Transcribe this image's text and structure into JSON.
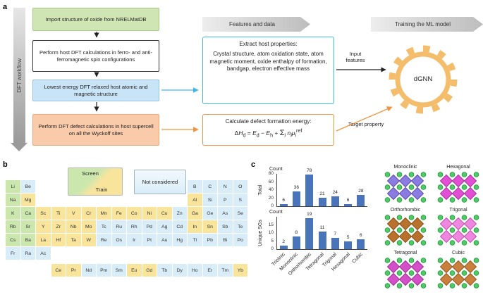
{
  "panel_labels": {
    "a": "a",
    "b": "b",
    "c": "c"
  },
  "colors": {
    "box_green": "#cfe5b3",
    "box_blue": "#c9e4f6",
    "box_orange": "#f9cbab",
    "border_blue": "#3fb7e9",
    "border_orange": "#f0923f",
    "gear_orange": "#f3bd6b",
    "bar_blue": "#4a74ba",
    "pt_screen": "#cbe7ae",
    "pt_train": "#f9e49c",
    "pt_not_considered": "#d9edf8"
  },
  "workflow": {
    "side_label": "DFT workflow",
    "boxes": [
      {
        "text": "Import structure of oxide from NRELMatDB",
        "type": "green"
      },
      {
        "text": "Perform host DFT calculations in ferro- and anti-ferromagnetic spin configurations",
        "type": "white"
      },
      {
        "text": "Lowest energy DFT relaxed host atomic and magnetic structure",
        "type": "blue"
      },
      {
        "text": "Perform DFT defect calculations in host supercell on all the Wyckoff sites",
        "type": "orange"
      }
    ],
    "top_arrows": [
      {
        "label": "Features and data"
      },
      {
        "label": "Training the ML model"
      }
    ],
    "extract_box": {
      "title": "Extract host properties:",
      "body": "Crystal structure, atom oxidation state, atom magnetic moment, oxide enthalpy of formation, bandgap, electron effective mass"
    },
    "calc_box": {
      "title": "Calculate defect formation energy:",
      "formula_html": "Δ<i>H</i><sub>d</sub> = <i>E</i><sub>d</sub> − <i>E</i><sub>h</sub> + <span class='sg'>Σ</span><sub><i>i</i></sub> <i>n</i><sub><i>i</i></sub><i>μ</i><sub><i>i</i></sub><sup>ref</sup>"
    },
    "input_features_label": "Input features",
    "target_property_label": "Target property",
    "model_label": "dGNN"
  },
  "periodic_table": {
    "legend": [
      {
        "label": "Screen",
        "category": "screen"
      },
      {
        "label": "Train",
        "category": "train"
      },
      {
        "label": "Not considered",
        "category": "none"
      }
    ],
    "elements": [
      {
        "s": "Li",
        "r": 0,
        "c": 0,
        "t": "screen"
      },
      {
        "s": "Be",
        "r": 0,
        "c": 1,
        "t": "none"
      },
      {
        "s": "B",
        "r": 0,
        "c": 12,
        "t": "none"
      },
      {
        "s": "C",
        "r": 0,
        "c": 13,
        "t": "none"
      },
      {
        "s": "N",
        "r": 0,
        "c": 14,
        "t": "none"
      },
      {
        "s": "O",
        "r": 0,
        "c": 15,
        "t": "none"
      },
      {
        "s": "Na",
        "r": 1,
        "c": 0,
        "t": "screen"
      },
      {
        "s": "Mg",
        "r": 1,
        "c": 1,
        "t": "train"
      },
      {
        "s": "Al",
        "r": 1,
        "c": 12,
        "t": "train"
      },
      {
        "s": "Si",
        "r": 1,
        "c": 13,
        "t": "none"
      },
      {
        "s": "P",
        "r": 1,
        "c": 14,
        "t": "none"
      },
      {
        "s": "S",
        "r": 1,
        "c": 15,
        "t": "none"
      },
      {
        "s": "K",
        "r": 2,
        "c": 0,
        "t": "screen"
      },
      {
        "s": "Ca",
        "r": 2,
        "c": 1,
        "t": "screen"
      },
      {
        "s": "Sc",
        "r": 2,
        "c": 2,
        "t": "train"
      },
      {
        "s": "Ti",
        "r": 2,
        "c": 3,
        "t": "train"
      },
      {
        "s": "V",
        "r": 2,
        "c": 4,
        "t": "train"
      },
      {
        "s": "Cr",
        "r": 2,
        "c": 5,
        "t": "train"
      },
      {
        "s": "Mn",
        "r": 2,
        "c": 6,
        "t": "train"
      },
      {
        "s": "Fe",
        "r": 2,
        "c": 7,
        "t": "train"
      },
      {
        "s": "Co",
        "r": 2,
        "c": 8,
        "t": "train"
      },
      {
        "s": "Ni",
        "r": 2,
        "c": 9,
        "t": "train"
      },
      {
        "s": "Cu",
        "r": 2,
        "c": 10,
        "t": "train"
      },
      {
        "s": "Zn",
        "r": 2,
        "c": 11,
        "t": "none"
      },
      {
        "s": "Ga",
        "r": 2,
        "c": 12,
        "t": "train"
      },
      {
        "s": "Ge",
        "r": 2,
        "c": 13,
        "t": "none"
      },
      {
        "s": "As",
        "r": 2,
        "c": 14,
        "t": "none"
      },
      {
        "s": "Se",
        "r": 2,
        "c": 15,
        "t": "none"
      },
      {
        "s": "Rb",
        "r": 3,
        "c": 0,
        "t": "screen"
      },
      {
        "s": "Sr",
        "r": 3,
        "c": 1,
        "t": "screen"
      },
      {
        "s": "Y",
        "r": 3,
        "c": 2,
        "t": "train"
      },
      {
        "s": "Zr",
        "r": 3,
        "c": 3,
        "t": "train"
      },
      {
        "s": "Nb",
        "r": 3,
        "c": 4,
        "t": "train"
      },
      {
        "s": "Mo",
        "r": 3,
        "c": 5,
        "t": "train"
      },
      {
        "s": "Tc",
        "r": 3,
        "c": 6,
        "t": "none"
      },
      {
        "s": "Ru",
        "r": 3,
        "c": 7,
        "t": "none"
      },
      {
        "s": "Rh",
        "r": 3,
        "c": 8,
        "t": "none"
      },
      {
        "s": "Pd",
        "r": 3,
        "c": 9,
        "t": "none"
      },
      {
        "s": "Ag",
        "r": 3,
        "c": 10,
        "t": "none"
      },
      {
        "s": "Cd",
        "r": 3,
        "c": 11,
        "t": "none"
      },
      {
        "s": "In",
        "r": 3,
        "c": 12,
        "t": "train"
      },
      {
        "s": "Sn",
        "r": 3,
        "c": 13,
        "t": "train"
      },
      {
        "s": "Sb",
        "r": 3,
        "c": 14,
        "t": "none"
      },
      {
        "s": "Te",
        "r": 3,
        "c": 15,
        "t": "none"
      },
      {
        "s": "Cs",
        "r": 4,
        "c": 0,
        "t": "screen"
      },
      {
        "s": "Ba",
        "r": 4,
        "c": 1,
        "t": "screen"
      },
      {
        "s": "La",
        "r": 4,
        "c": 2,
        "t": "train"
      },
      {
        "s": "Hf",
        "r": 4,
        "c": 3,
        "t": "train"
      },
      {
        "s": "Ta",
        "r": 4,
        "c": 4,
        "t": "train"
      },
      {
        "s": "W",
        "r": 4,
        "c": 5,
        "t": "train"
      },
      {
        "s": "Re",
        "r": 4,
        "c": 6,
        "t": "none"
      },
      {
        "s": "Os",
        "r": 4,
        "c": 7,
        "t": "none"
      },
      {
        "s": "Ir",
        "r": 4,
        "c": 8,
        "t": "none"
      },
      {
        "s": "Pt",
        "r": 4,
        "c": 9,
        "t": "none"
      },
      {
        "s": "Au",
        "r": 4,
        "c": 10,
        "t": "none"
      },
      {
        "s": "Hg",
        "r": 4,
        "c": 11,
        "t": "none"
      },
      {
        "s": "Tl",
        "r": 4,
        "c": 12,
        "t": "none"
      },
      {
        "s": "Pb",
        "r": 4,
        "c": 13,
        "t": "none"
      },
      {
        "s": "Bi",
        "r": 4,
        "c": 14,
        "t": "none"
      },
      {
        "s": "Po",
        "r": 4,
        "c": 15,
        "t": "none"
      },
      {
        "s": "Fr",
        "r": 5,
        "c": 0,
        "t": "none"
      },
      {
        "s": "Ra",
        "r": 5,
        "c": 1,
        "t": "none"
      },
      {
        "s": "Ac",
        "r": 5,
        "c": 2,
        "t": "none"
      },
      {
        "s": "Ce",
        "r": 7,
        "c": 3,
        "t": "train"
      },
      {
        "s": "Pr",
        "r": 7,
        "c": 4,
        "t": "train"
      },
      {
        "s": "Nd",
        "r": 7,
        "c": 5,
        "t": "none"
      },
      {
        "s": "Pm",
        "r": 7,
        "c": 6,
        "t": "none"
      },
      {
        "s": "Sm",
        "r": 7,
        "c": 7,
        "t": "none"
      },
      {
        "s": "Eu",
        "r": 7,
        "c": 8,
        "t": "train"
      },
      {
        "s": "Gd",
        "r": 7,
        "c": 9,
        "t": "train"
      },
      {
        "s": "Tb",
        "r": 7,
        "c": 10,
        "t": "none"
      },
      {
        "s": "Dy",
        "r": 7,
        "c": 11,
        "t": "none"
      },
      {
        "s": "Ho",
        "r": 7,
        "c": 12,
        "t": "none"
      },
      {
        "s": "Er",
        "r": 7,
        "c": 13,
        "t": "none"
      },
      {
        "s": "Tm",
        "r": 7,
        "c": 14,
        "t": "none"
      },
      {
        "s": "Yb",
        "r": 7,
        "c": 15,
        "t": "train"
      }
    ]
  },
  "chart_data": [
    {
      "type": "bar",
      "corner_label": "Count",
      "ylabel": "Total",
      "categories": [
        "Triclinic",
        "Monoclinic",
        "Orthorhombic",
        "Tetragonal",
        "Trigonal",
        "Hexagonal",
        "Cubic"
      ],
      "values": [
        6,
        36,
        78,
        21,
        24,
        6,
        28
      ],
      "yticks": [
        0,
        20,
        40,
        60,
        80
      ],
      "ylim": [
        0,
        80
      ],
      "bar_color": "#4a74ba",
      "grid": false,
      "show_x_labels": false
    },
    {
      "type": "bar",
      "corner_label": "Count",
      "ylabel": "Unique SGs",
      "categories": [
        "Triclinic",
        "Monoclinic",
        "Orthorhombic",
        "Tetragonal",
        "Trigonal",
        "Hexagonal",
        "Cubic"
      ],
      "values": [
        2,
        8,
        19,
        11,
        7,
        5,
        6
      ],
      "yticks": [
        0,
        5,
        10,
        15
      ],
      "ylim": [
        0,
        20
      ],
      "bar_color": "#4a74ba",
      "grid": false,
      "show_x_labels": true
    }
  ],
  "structures": [
    {
      "label": "Monoclinic",
      "poly": "#8a7ce0",
      "poly_dark": "#5a4dae",
      "sphere": "#4ecb67",
      "sphere_dark": "#23913d"
    },
    {
      "label": "Hexagonal",
      "poly": "#e24fd4",
      "poly_dark": "#a8309e",
      "sphere": "#4ecb67",
      "sphere_dark": "#23913d"
    },
    {
      "label": "Orthorhombic",
      "poly": "#b8722e",
      "poly_dark": "#8a5016",
      "sphere": "#4ecb67",
      "sphere_dark": "#23913d"
    },
    {
      "label": "Trigonal",
      "poly": "#ef86e0",
      "poly_dark": "#c050b0",
      "sphere": "#4ecb67",
      "sphere_dark": "#23913d"
    },
    {
      "label": "Tetragonal",
      "poly": "#d44fc8",
      "poly_dark": "#9e3096",
      "sphere": "#4ecb67",
      "sphere_dark": "#23913d"
    },
    {
      "label": "Cubic",
      "poly": "#c8803c",
      "poly_dark": "#96581e",
      "sphere": "#4ecb67",
      "sphere_dark": "#23913d"
    }
  ]
}
